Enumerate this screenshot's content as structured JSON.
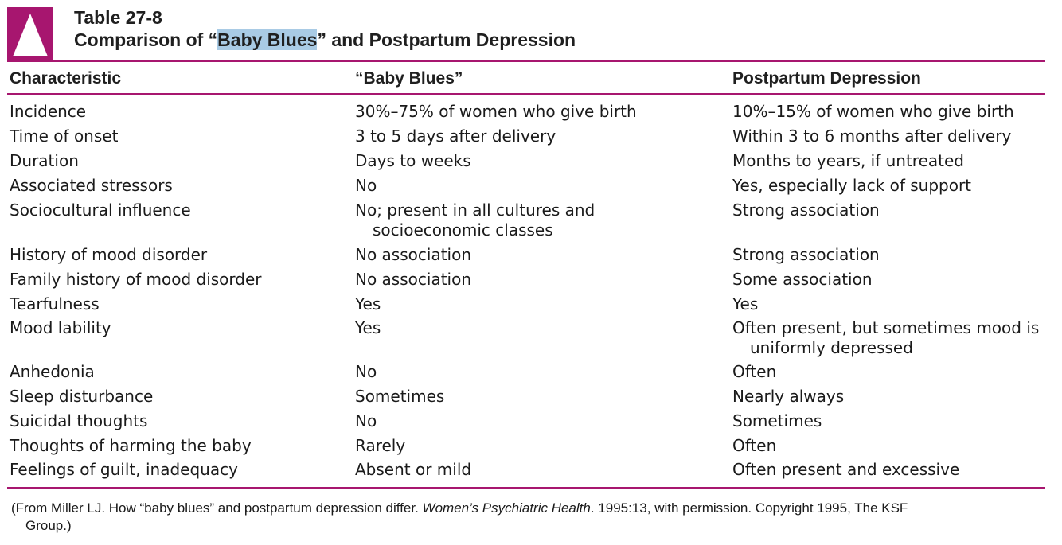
{
  "header": {
    "table_number": "Table 27-8",
    "title_before": "Comparison of “",
    "title_highlight": "Baby Blues",
    "title_after": "” and Postpartum Depression"
  },
  "columns": [
    "Characteristic",
    "“Baby Blues”",
    "Postpartum Depression"
  ],
  "rows": [
    {
      "characteristic": "Incidence",
      "baby_blues": [
        "30%–75% of women who give birth"
      ],
      "ppd": [
        "10%–15% of women who give birth"
      ]
    },
    {
      "characteristic": "Time of onset",
      "baby_blues": [
        "3 to 5 days after delivery"
      ],
      "ppd": [
        "Within 3 to 6 months after delivery"
      ]
    },
    {
      "characteristic": "Duration",
      "baby_blues": [
        "Days to weeks"
      ],
      "ppd": [
        "Months to years, if untreated"
      ]
    },
    {
      "characteristic": "Associated stressors",
      "baby_blues": [
        "No"
      ],
      "ppd": [
        "Yes, especially lack of support"
      ]
    },
    {
      "characteristic": "Sociocultural influence",
      "baby_blues": [
        "No; present in all cultures and",
        "socioeconomic classes"
      ],
      "ppd": [
        "Strong association"
      ]
    },
    {
      "characteristic": "History of mood disorder",
      "baby_blues": [
        "No association"
      ],
      "ppd": [
        "Strong association"
      ]
    },
    {
      "characteristic": "Family history of mood disorder",
      "baby_blues": [
        "No association"
      ],
      "ppd": [
        "Some association"
      ]
    },
    {
      "characteristic": "Tearfulness",
      "baby_blues": [
        "Yes"
      ],
      "ppd": [
        "Yes"
      ]
    },
    {
      "characteristic": "Mood lability",
      "baby_blues": [
        "Yes"
      ],
      "ppd": [
        "Often present, but sometimes mood is",
        "uniformly depressed"
      ]
    },
    {
      "characteristic": "Anhedonia",
      "baby_blues": [
        "No"
      ],
      "ppd": [
        "Often"
      ]
    },
    {
      "characteristic": "Sleep disturbance",
      "baby_blues": [
        "Sometimes"
      ],
      "ppd": [
        "Nearly always"
      ]
    },
    {
      "characteristic": "Suicidal thoughts",
      "baby_blues": [
        "No"
      ],
      "ppd": [
        "Sometimes"
      ]
    },
    {
      "characteristic": "Thoughts of harming the baby",
      "baby_blues": [
        "Rarely"
      ],
      "ppd": [
        "Often"
      ]
    },
    {
      "characteristic": "Feelings of guilt, inadequacy",
      "baby_blues": [
        "Absent or mild"
      ],
      "ppd": [
        "Often present and excessive"
      ]
    }
  ],
  "footnote": {
    "before": "(From Miller LJ. How “baby blues” and postpartum depression differ. ",
    "journal": "Women’s Psychiatric Health",
    "after": ". 1995:13, with permission. Copyright 1995, The KSF",
    "line2": "Group.)"
  },
  "colors": {
    "accent": "#a7166f",
    "highlight": "#a9cbe5"
  }
}
